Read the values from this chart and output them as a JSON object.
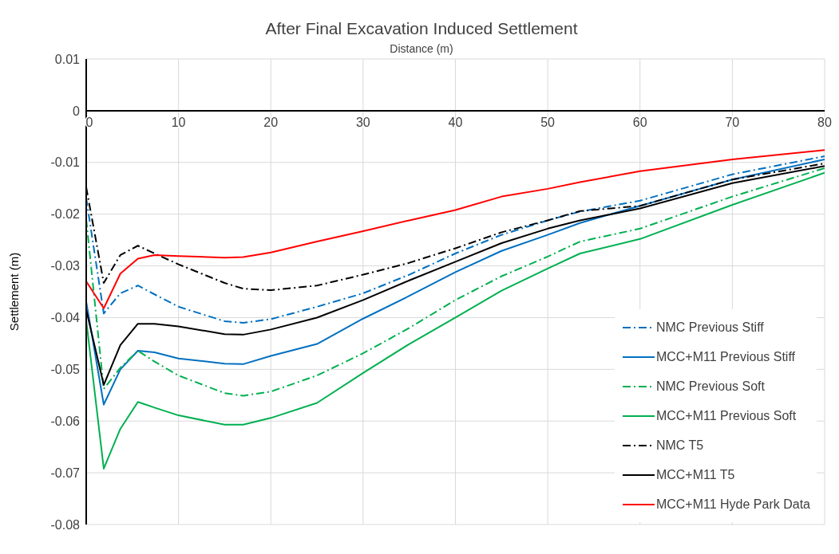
{
  "chart_data": {
    "type": "line",
    "title": "After Final Excavation Induced Settlement",
    "xlabel": "Distance (m)",
    "ylabel": "Settlement (m)",
    "x": [
      0,
      1.9,
      3.7,
      5.6,
      7.4,
      10,
      15,
      17,
      20,
      25,
      30,
      35,
      40,
      45,
      50,
      53.5,
      60,
      70,
      80
    ],
    "series": [
      {
        "name": "NMC Previous Stiff",
        "color": "#0070c0",
        "line_style": "dashdot",
        "values": [
          -0.0169,
          -0.0392,
          -0.0353,
          -0.0338,
          -0.0355,
          -0.0379,
          -0.0407,
          -0.041,
          -0.0403,
          -0.0379,
          -0.0353,
          -0.0317,
          -0.0276,
          -0.024,
          -0.0212,
          -0.0195,
          -0.0174,
          -0.0123,
          -0.0088
        ]
      },
      {
        "name": "MCC+M11 Previous Stiff",
        "color": "#0070c0",
        "line_style": "solid",
        "values": [
          -0.0369,
          -0.0568,
          -0.05,
          -0.0464,
          -0.0467,
          -0.0479,
          -0.0489,
          -0.049,
          -0.0474,
          -0.0451,
          -0.0402,
          -0.0358,
          -0.0312,
          -0.0271,
          -0.024,
          -0.0217,
          -0.0184,
          -0.0133,
          -0.0094
        ]
      },
      {
        "name": "NMC Previous Soft",
        "color": "#00b050",
        "line_style": "dashdot",
        "values": [
          -0.021,
          -0.0538,
          -0.0497,
          -0.0464,
          -0.0485,
          -0.0512,
          -0.0546,
          -0.0551,
          -0.0543,
          -0.0512,
          -0.0469,
          -0.042,
          -0.0366,
          -0.032,
          -0.0282,
          -0.0253,
          -0.0228,
          -0.0166,
          -0.0111
        ]
      },
      {
        "name": "MCC+M11 Previous Soft",
        "color": "#00b050",
        "line_style": "solid",
        "values": [
          -0.0405,
          -0.0692,
          -0.0615,
          -0.0563,
          -0.0574,
          -0.0589,
          -0.0607,
          -0.0607,
          -0.0594,
          -0.0565,
          -0.0507,
          -0.0451,
          -0.04,
          -0.0348,
          -0.0305,
          -0.0276,
          -0.0248,
          -0.0182,
          -0.012
        ]
      },
      {
        "name": "NMC T5",
        "color": "#000000",
        "line_style": "dashdot",
        "values": [
          -0.0148,
          -0.0333,
          -0.0279,
          -0.0261,
          -0.0276,
          -0.0297,
          -0.0333,
          -0.0344,
          -0.0347,
          -0.0338,
          -0.0317,
          -0.0294,
          -0.0266,
          -0.0235,
          -0.0212,
          -0.0194,
          -0.0184,
          -0.0133,
          -0.0102
        ]
      },
      {
        "name": "MCC+M11 T5",
        "color": "#000000",
        "line_style": "solid",
        "values": [
          -0.0385,
          -0.053,
          -0.0453,
          -0.0412,
          -0.0412,
          -0.0417,
          -0.0432,
          -0.0433,
          -0.0423,
          -0.04,
          -0.0366,
          -0.0328,
          -0.0292,
          -0.0256,
          -0.0228,
          -0.0212,
          -0.0189,
          -0.014,
          -0.0107
        ]
      },
      {
        "name": "MCC+M11 Hyde Park Data",
        "color": "#ff0000",
        "line_style": "solid",
        "values": [
          -0.033,
          -0.0382,
          -0.0315,
          -0.0286,
          -0.0279,
          -0.0281,
          -0.0284,
          -0.0283,
          -0.0274,
          -0.0253,
          -0.0233,
          -0.0212,
          -0.0192,
          -0.0166,
          -0.0151,
          -0.0138,
          -0.0117,
          -0.0094,
          -0.0076
        ]
      }
    ],
    "xlim": [
      0,
      80
    ],
    "xticks": [
      0,
      10,
      20,
      30,
      40,
      50,
      60,
      70,
      80
    ],
    "ylim": [
      -0.08,
      0.01
    ],
    "yticks": [
      -0.08,
      -0.07,
      -0.06,
      -0.05,
      -0.04,
      -0.03,
      -0.02,
      -0.01,
      0,
      0.01
    ],
    "grid": true,
    "legend": "right",
    "marker": "none"
  }
}
